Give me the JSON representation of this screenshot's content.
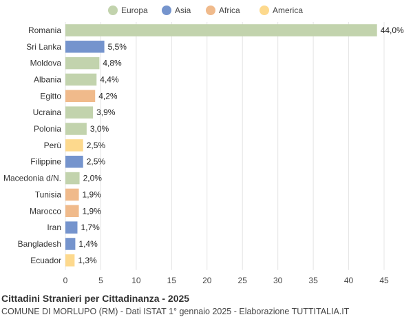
{
  "chart_data": {
    "type": "bar",
    "orientation": "horizontal",
    "title": "Cittadini Stranieri per Cittadinanza - 2025",
    "subtitle": "COMUNE DI MORLUPO (RM) - Dati ISTAT 1° gennaio 2025 - Elaborazione TUTTITALIA.IT",
    "xlabel": "",
    "ylabel": "",
    "xlim": [
      0,
      45
    ],
    "xticks": [
      0,
      5,
      10,
      15,
      20,
      25,
      30,
      35,
      40,
      45
    ],
    "grid": "vertical",
    "legend_position": "top",
    "legend": [
      {
        "name": "Europa",
        "color": "#c2d3ad"
      },
      {
        "name": "Asia",
        "color": "#7594cd"
      },
      {
        "name": "Africa",
        "color": "#f0ba8b"
      },
      {
        "name": "America",
        "color": "#fdd98d"
      }
    ],
    "categories": [
      "Romania",
      "Sri Lanka",
      "Moldova",
      "Albania",
      "Egitto",
      "Ucraina",
      "Polonia",
      "Perù",
      "Filippine",
      "Macedonia d/N.",
      "Tunisia",
      "Marocco",
      "Iran",
      "Bangladesh",
      "Ecuador"
    ],
    "values": [
      44.0,
      5.5,
      4.8,
      4.4,
      4.2,
      3.9,
      3.0,
      2.5,
      2.5,
      2.0,
      1.9,
      1.9,
      1.7,
      1.4,
      1.3
    ],
    "value_labels": [
      "44,0%",
      "5,5%",
      "4,8%",
      "4,4%",
      "4,2%",
      "3,9%",
      "3,0%",
      "2,5%",
      "2,5%",
      "2,0%",
      "1,9%",
      "1,9%",
      "1,7%",
      "1,4%",
      "1,3%"
    ],
    "groups": [
      "Europa",
      "Asia",
      "Europa",
      "Europa",
      "Africa",
      "Europa",
      "Europa",
      "America",
      "Asia",
      "Europa",
      "Africa",
      "Africa",
      "Asia",
      "Asia",
      "America"
    ]
  }
}
